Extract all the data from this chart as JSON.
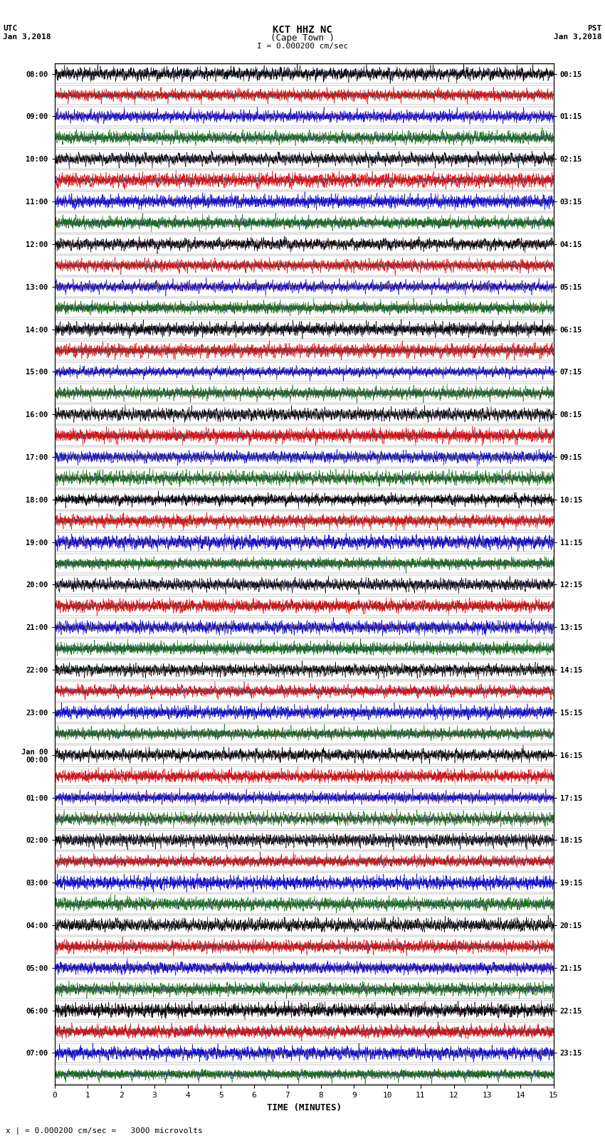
{
  "title_line1": "KCT HHZ NC",
  "title_line2": "(Cape Town )",
  "scale_label": "I = 0.000200 cm/sec",
  "left_header": "UTC",
  "left_date": "Jan 3,2018",
  "right_header": "PST",
  "right_date": "Jan 3,2018",
  "bottom_label": "TIME (MINUTES)",
  "bottom_note": "x | = 0.000200 cm/sec =   3000 microvolts",
  "utc_times": [
    "08:00",
    "09:00",
    "10:00",
    "11:00",
    "12:00",
    "13:00",
    "14:00",
    "15:00",
    "16:00",
    "17:00",
    "18:00",
    "19:00",
    "20:00",
    "21:00",
    "22:00",
    "23:00",
    "Jan 00\n00:00",
    "01:00",
    "02:00",
    "03:00",
    "04:00",
    "05:00",
    "06:00",
    "07:00"
  ],
  "pst_times": [
    "00:15",
    "01:15",
    "02:15",
    "03:15",
    "04:15",
    "05:15",
    "06:15",
    "07:15",
    "08:15",
    "09:15",
    "10:15",
    "11:15",
    "12:15",
    "13:15",
    "14:15",
    "15:15",
    "16:15",
    "17:15",
    "18:15",
    "19:15",
    "20:15",
    "21:15",
    "22:15",
    "23:15"
  ],
  "n_rows": 48,
  "n_minutes": 15,
  "row_colors": [
    "black",
    "red",
    "blue",
    "green"
  ],
  "bg_color": "white",
  "figsize": [
    8.5,
    16.13
  ],
  "dpi": 100,
  "seed": 42
}
